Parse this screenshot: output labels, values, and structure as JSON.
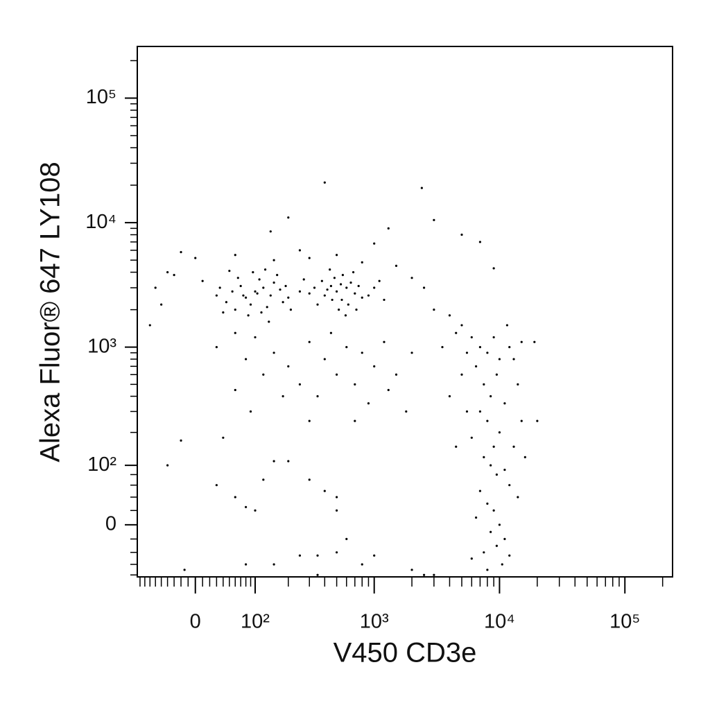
{
  "chart_data": {
    "type": "scatter",
    "scale": "biexponential",
    "color": "#000000",
    "xlabel": "V450 CD3e",
    "ylabel": "Alexa Fluor® 647  LY108",
    "xlim": [
      -96,
      240000
    ],
    "ylim": [
      -84,
      260000
    ],
    "xticks": [
      0,
      {
        "value": 100,
        "label": "10²"
      },
      {
        "value": 1000,
        "label": "10³"
      },
      {
        "value": 10000,
        "label": "10⁴"
      },
      {
        "value": 100000,
        "label": "10⁵"
      }
    ],
    "yticks": [
      0,
      {
        "value": 100,
        "label": "10²"
      },
      {
        "value": 1000,
        "label": "10³"
      },
      {
        "value": 10000,
        "label": "10⁴"
      },
      {
        "value": 100000,
        "label": "10⁵"
      }
    ],
    "xminorticks": [
      -90,
      -80,
      -70,
      -60,
      -50,
      -40,
      -30,
      -20,
      -10,
      10,
      20,
      30,
      40,
      50,
      60,
      70,
      80,
      90,
      200,
      300,
      400,
      500,
      600,
      700,
      800,
      900,
      2000,
      3000,
      4000,
      5000,
      6000,
      7000,
      8000,
      9000,
      20000,
      30000,
      40000,
      50000,
      60000,
      70000,
      80000,
      90000,
      200000
    ],
    "yminorticks": [
      -80,
      -60,
      -40,
      -20,
      20,
      40,
      60,
      80,
      200,
      300,
      400,
      500,
      600,
      700,
      800,
      900,
      2000,
      3000,
      4000,
      5000,
      6000,
      7000,
      8000,
      9000,
      20000,
      30000,
      40000,
      50000,
      60000,
      70000,
      80000,
      90000,
      200000
    ],
    "x": [
      80,
      100,
      120,
      90,
      110,
      140,
      70,
      60,
      130,
      150,
      95,
      85,
      170,
      180,
      105,
      115,
      75,
      65,
      125,
      160,
      200,
      190,
      55,
      45,
      35,
      40,
      30,
      50,
      135,
      210,
      400,
      500,
      450,
      550,
      600,
      350,
      480,
      520,
      700,
      650,
      420,
      380,
      560,
      620,
      750,
      800,
      300,
      330,
      460,
      540,
      590,
      440,
      680,
      720,
      250,
      270,
      900,
      1000,
      1200,
      1100,
      60,
      150,
      300,
      500,
      800,
      1500,
      2000,
      2500,
      140,
      200,
      1300,
      2400,
      3000,
      400,
      5000,
      7000,
      9000,
      1000,
      250,
      -60,
      -50,
      -70,
      -30,
      -20,
      0,
      -40,
      10,
      100,
      150,
      200,
      300,
      400,
      600,
      800,
      250,
      120,
      80,
      60,
      350,
      500,
      700,
      1000,
      1500,
      180,
      90,
      450,
      1200,
      2000,
      300,
      1800,
      60,
      30,
      900,
      1300,
      700,
      3000,
      4000,
      5000,
      6000,
      7000,
      8000,
      9000,
      10000,
      12000,
      6500,
      7500,
      8500,
      9500,
      11000,
      5500,
      4500,
      7000,
      8000,
      9000,
      10000,
      6000,
      7500,
      8500,
      9500,
      11000,
      12000,
      13000,
      7000,
      8000,
      9000,
      10000,
      6500,
      8500,
      9500,
      11000,
      7500,
      10500,
      6000,
      8000,
      12000,
      14000,
      15000,
      16000,
      14000,
      13000,
      11500,
      15000,
      20000,
      19000,
      5000,
      5500,
      4000,
      4500,
      3500,
      -40,
      30,
      60,
      80,
      120,
      150,
      200,
      300,
      400,
      500,
      600,
      80,
      150,
      250,
      350,
      500,
      800,
      100,
      40,
      1000,
      2000,
      2500,
      3000,
      -20,
      -15,
      500,
      350
    ],
    "y": [
      2500,
      2800,
      3000,
      2200,
      3500,
      2600,
      3100,
      2000,
      2100,
      3300,
      4000,
      1800,
      2900,
      2300,
      2700,
      1900,
      2600,
      3600,
      4200,
      3800,
      2500,
      3100,
      2800,
      2300,
      3000,
      1900,
      2600,
      4100,
      1600,
      2000,
      2600,
      2800,
      3100,
      2400,
      3000,
      2200,
      3600,
      2000,
      2700,
      3300,
      2900,
      3400,
      3800,
      2200,
      3100,
      2500,
      2700,
      3000,
      2400,
      3200,
      1800,
      4200,
      4000,
      2000,
      2800,
      3500,
      2600,
      3000,
      2400,
      3400,
      5500,
      5000,
      5200,
      5500,
      4800,
      4500,
      3600,
      3000,
      8500,
      11000,
      9000,
      19000,
      10500,
      21000,
      8000,
      7000,
      4300,
      6800,
      6000,
      3000,
      2200,
      1500,
      3800,
      5800,
      5200,
      4000,
      3400,
      1200,
      900,
      700,
      1100,
      800,
      1000,
      900,
      500,
      600,
      800,
      1300,
      400,
      600,
      500,
      700,
      600,
      400,
      300,
      1300,
      1100,
      900,
      250,
      300,
      450,
      1000,
      350,
      450,
      250,
      2000,
      1800,
      1500,
      1200,
      1000,
      900,
      1200,
      800,
      1000,
      700,
      500,
      400,
      600,
      350,
      900,
      1300,
      300,
      250,
      150,
      200,
      180,
      120,
      100,
      80,
      90,
      60,
      150,
      50,
      30,
      20,
      0,
      10,
      -10,
      -30,
      -20,
      -40,
      -60,
      -50,
      -70,
      -45,
      500,
      250,
      120,
      40,
      800,
      1500,
      1100,
      250,
      1100,
      600,
      300,
      400,
      150,
      1000,
      100,
      60,
      40,
      25,
      70,
      110,
      110,
      70,
      50,
      20,
      -20,
      -60,
      -60,
      -45,
      -45,
      -40,
      -60,
      20,
      180,
      -45,
      -70,
      -80,
      -80,
      170,
      -70,
      40,
      -80
    ]
  }
}
